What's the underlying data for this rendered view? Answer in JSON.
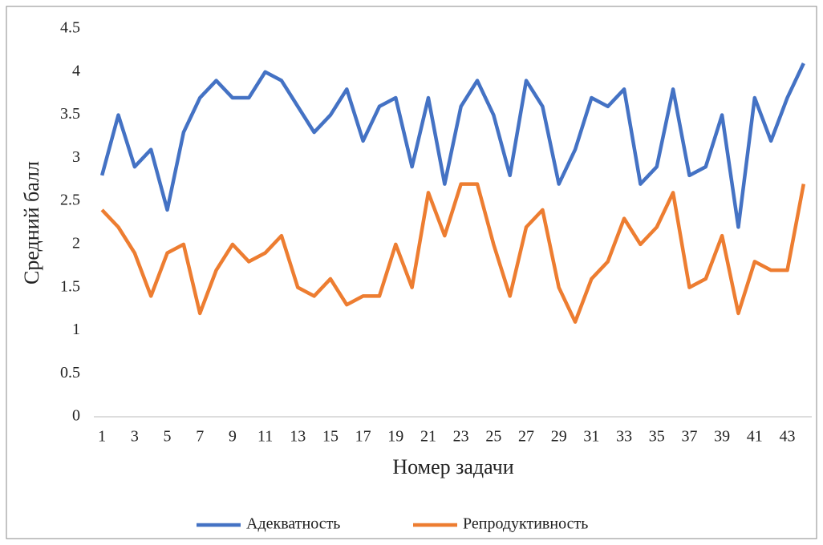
{
  "chart_data": {
    "type": "line",
    "x_label": "Номер задачи",
    "y_label": "Средний балл",
    "categories": [
      1,
      null,
      3,
      null,
      5,
      null,
      7,
      null,
      9,
      null,
      11,
      null,
      13,
      null,
      15,
      null,
      17,
      null,
      19,
      null,
      21,
      null,
      23,
      null,
      25,
      null,
      27,
      null,
      29,
      null,
      31,
      null,
      33,
      null,
      35,
      null,
      37,
      null,
      39,
      null,
      41,
      null,
      43,
      null
    ],
    "series": [
      {
        "name": "Адекватность",
        "color": "#4472c4",
        "values": [
          2.8,
          3.5,
          2.9,
          3.1,
          2.4,
          3.3,
          3.7,
          3.9,
          3.7,
          3.7,
          4.0,
          3.9,
          3.6,
          3.3,
          3.5,
          3.8,
          3.2,
          3.6,
          3.7,
          2.9,
          3.7,
          2.7,
          3.6,
          3.9,
          3.5,
          2.8,
          3.9,
          3.6,
          2.7,
          3.1,
          3.7,
          3.6,
          3.8,
          2.7,
          2.9,
          3.8,
          2.8,
          2.9,
          3.5,
          2.2,
          3.7,
          3.2,
          3.7,
          4.1
        ]
      },
      {
        "name": "Репродуктивность",
        "color": "#ed7d31",
        "values": [
          2.4,
          2.2,
          1.9,
          1.4,
          1.9,
          2.0,
          1.2,
          1.7,
          2.0,
          1.8,
          1.9,
          2.1,
          1.5,
          1.4,
          1.6,
          1.3,
          1.4,
          1.4,
          2.0,
          1.5,
          2.6,
          2.1,
          2.7,
          2.7,
          2.0,
          1.4,
          2.2,
          2.4,
          1.5,
          1.1,
          1.6,
          1.8,
          2.3,
          2.0,
          2.2,
          2.6,
          1.5,
          1.6,
          2.1,
          1.2,
          1.8,
          1.7,
          1.7,
          2.7
        ]
      }
    ],
    "ylim": [
      0,
      4.5
    ],
    "yticks": [
      0,
      0.5,
      1,
      1.5,
      2,
      2.5,
      3,
      3.5,
      4,
      4.5
    ],
    "grid": false,
    "legend": "bottom"
  }
}
